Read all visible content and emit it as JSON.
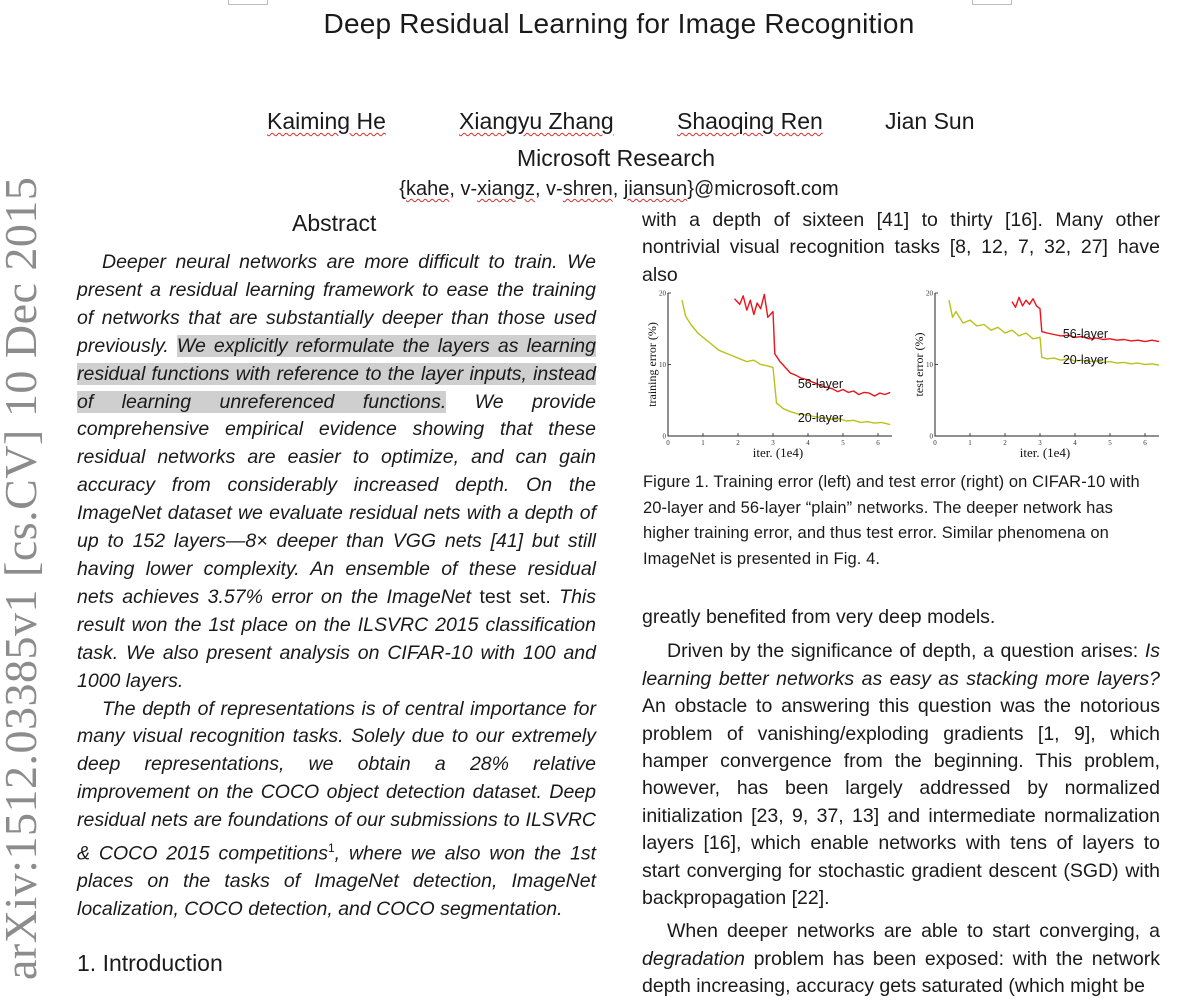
{
  "paper": {
    "title": "Deep Residual Learning for Image Recognition",
    "authors": [
      {
        "name": "Kaiming He"
      },
      {
        "name": "Xiangyu Zhang"
      },
      {
        "name": "Shaoqing Ren"
      },
      {
        "name": "Jian Sun"
      }
    ],
    "affiliation": "Microsoft Research",
    "emails": {
      "prefix": "{",
      "kahe": "kahe",
      "sep1": ", v-",
      "xiangz": "xiangz",
      "sep2": ", v-",
      "shren": "shren",
      "sep3": ", ",
      "jiansun": "jiansun",
      "suffix": "}@microsoft.com"
    },
    "arxiv_stamp": "arXiv:1512.03385v1  [cs.CV]  10 Dec 2015"
  },
  "abstract": {
    "heading": "Abstract",
    "p1_a": "Deeper neural networks are more difficult to train. We present a residual learning framework to ease the training of networks that are substantially deeper than those used previously. ",
    "p1_highlight": "We explicitly reformulate the layers as learning residual functions with reference to the layer inputs, instead of learning unreferenced functions.",
    "p1_b": " We provide comprehensive empirical evidence showing that these residual networks are easier to optimize, and can gain accuracy from considerably increased depth. On the ImageNet dataset we evaluate residual nets with a depth of up to 152 layers—8× deeper than VGG nets [41] but still having lower complexity. An ensemble of these residual nets achieves 3.57% error on the ImageNet ",
    "p1_upright": "test set.",
    "p1_c": " This result won the 1st place on the ILSVRC 2015 classification task. We also present analysis on CIFAR-10 with 100 and 1000 layers.",
    "p2_a": "The depth of representations is of central importance for many visual recognition tasks. Solely due to our extremely deep representations, we obtain a 28% relative improvement on the COCO object detection dataset. Deep residual nets are foundations of our submissions to ILSVRC & COCO 2015 competitions",
    "p2_sup": "1",
    "p2_b": ", where we also won the 1st places on the tasks of ImageNet detection, ImageNet localization, COCO detection, and COCO segmentation."
  },
  "intro_heading": "1. Introduction",
  "right_column": {
    "top_text": "with a depth of sixteen [41] to thirty [16]. Many other nontrivial visual recognition tasks [8, 12, 7, 32, 27] have also",
    "caption": "Figure 1. Training error (left) and test error (right) on CIFAR-10 with 20-layer and 56-layer “plain” networks. The deeper network has higher training error, and thus test error. Similar phenomena on ImageNet is presented in Fig. 4.",
    "after_figure": "greatly benefited from very deep models.",
    "para2_a": "Driven by the significance of depth, a question arises: ",
    "para2_italic": "Is learning better networks as easy as stacking more layers?",
    "para2_b": " An obstacle to answering this question was the notorious problem of vanishing/exploding gradients [1, 9], which hamper convergence from the beginning. This problem, however, has been largely addressed by normalized initialization [23, 9, 37, 13] and intermediate normalization layers [16], which enable networks with tens of layers to start converging for stochastic gradient descent (SGD) with backpropagation [22].",
    "para3_a": "When deeper networks are able to start converging, a ",
    "para3_italic": "degradation",
    "para3_b": " problem has been exposed: with the network depth increasing, accuracy gets saturated (which might be"
  },
  "chart_data": [
    {
      "type": "line",
      "ylabel": "training error (%)",
      "xlabel": "iter. (1e4)",
      "xticks": [
        "0",
        "1",
        "2",
        "3",
        "4",
        "5",
        "6"
      ],
      "yticks": [
        "0",
        "10",
        "20"
      ],
      "xlim": [
        0,
        6.4
      ],
      "ylim": [
        0,
        20
      ],
      "colors": {
        "56-layer": "#e8141c",
        "20-layer": "#b9c21a"
      },
      "series": [
        {
          "name": "56-layer",
          "points": [
            [
              1.9,
              19.2
            ],
            [
              2.05,
              18.4
            ],
            [
              2.15,
              19.6
            ],
            [
              2.25,
              17.6
            ],
            [
              2.35,
              19.0
            ],
            [
              2.45,
              17.0
            ],
            [
              2.55,
              18.6
            ],
            [
              2.65,
              17.8
            ],
            [
              2.75,
              19.8
            ],
            [
              2.85,
              16.6
            ],
            [
              3.0,
              17.4
            ],
            [
              3.05,
              11.5
            ],
            [
              3.2,
              10.4
            ],
            [
              3.35,
              9.6
            ],
            [
              3.5,
              8.8
            ],
            [
              3.65,
              8.5
            ],
            [
              3.8,
              8.1
            ],
            [
              3.95,
              7.9
            ],
            [
              4.1,
              7.6
            ],
            [
              4.25,
              7.3
            ],
            [
              4.4,
              7.0
            ],
            [
              4.55,
              6.8
            ],
            [
              4.7,
              6.6
            ],
            [
              4.85,
              6.2
            ],
            [
              5.0,
              6.5
            ],
            [
              5.15,
              6.1
            ],
            [
              5.3,
              6.3
            ],
            [
              5.45,
              5.8
            ],
            [
              5.6,
              6.1
            ],
            [
              5.75,
              6.0
            ],
            [
              5.9,
              5.6
            ],
            [
              6.05,
              6.0
            ],
            [
              6.2,
              5.8
            ],
            [
              6.35,
              6.1
            ]
          ]
        },
        {
          "name": "20-layer",
          "points": [
            [
              0.4,
              19.0
            ],
            [
              0.5,
              16.8
            ],
            [
              0.65,
              15.6
            ],
            [
              0.85,
              14.4
            ],
            [
              1.05,
              13.6
            ],
            [
              1.25,
              12.8
            ],
            [
              1.45,
              12.0
            ],
            [
              1.65,
              11.6
            ],
            [
              1.85,
              11.2
            ],
            [
              2.05,
              10.8
            ],
            [
              2.25,
              10.4
            ],
            [
              2.45,
              10.6
            ],
            [
              2.65,
              10.0
            ],
            [
              2.85,
              9.8
            ],
            [
              3.0,
              9.6
            ],
            [
              3.1,
              4.6
            ],
            [
              3.3,
              3.8
            ],
            [
              3.5,
              3.4
            ],
            [
              3.7,
              3.1
            ],
            [
              3.9,
              3.0
            ],
            [
              4.1,
              2.8
            ],
            [
              4.3,
              2.6
            ],
            [
              4.5,
              2.5
            ],
            [
              4.7,
              2.3
            ],
            [
              4.9,
              2.4
            ],
            [
              5.1,
              2.1
            ],
            [
              5.3,
              2.2
            ],
            [
              5.5,
              1.9
            ],
            [
              5.7,
              2.0
            ],
            [
              5.9,
              1.8
            ],
            [
              6.1,
              1.9
            ],
            [
              6.35,
              1.6
            ]
          ]
        }
      ]
    },
    {
      "type": "line",
      "ylabel": "test error (%)",
      "xlabel": "iter. (1e4)",
      "xticks": [
        "0",
        "1",
        "2",
        "3",
        "4",
        "5",
        "6"
      ],
      "yticks": [
        "0",
        "10",
        "20"
      ],
      "xlim": [
        0,
        6.4
      ],
      "ylim": [
        0,
        20
      ],
      "colors": {
        "56-layer": "#e8141c",
        "20-layer": "#b9c21a"
      },
      "series": [
        {
          "name": "56-layer",
          "points": [
            [
              2.2,
              18.8
            ],
            [
              2.3,
              18.0
            ],
            [
              2.4,
              19.4
            ],
            [
              2.5,
              18.2
            ],
            [
              2.6,
              19.0
            ],
            [
              2.7,
              18.4
            ],
            [
              2.8,
              19.2
            ],
            [
              2.9,
              18.2
            ],
            [
              3.0,
              17.8
            ],
            [
              3.05,
              14.6
            ],
            [
              3.2,
              14.4
            ],
            [
              3.4,
              14.2
            ],
            [
              3.6,
              14.0
            ],
            [
              3.8,
              14.1
            ],
            [
              4.0,
              13.8
            ],
            [
              4.2,
              13.9
            ],
            [
              4.4,
              13.6
            ],
            [
              4.6,
              13.7
            ],
            [
              4.8,
              13.5
            ],
            [
              5.0,
              13.6
            ],
            [
              5.2,
              13.4
            ],
            [
              5.4,
              13.5
            ],
            [
              5.6,
              13.3
            ],
            [
              5.8,
              13.4
            ],
            [
              6.0,
              13.2
            ],
            [
              6.2,
              13.4
            ],
            [
              6.4,
              13.2
            ]
          ]
        },
        {
          "name": "20-layer",
          "points": [
            [
              0.4,
              19.0
            ],
            [
              0.5,
              16.6
            ],
            [
              0.6,
              17.4
            ],
            [
              0.8,
              15.8
            ],
            [
              1.0,
              16.2
            ],
            [
              1.2,
              15.4
            ],
            [
              1.4,
              15.6
            ],
            [
              1.6,
              14.8
            ],
            [
              1.8,
              15.2
            ],
            [
              2.0,
              14.4
            ],
            [
              2.2,
              14.8
            ],
            [
              2.4,
              14.0
            ],
            [
              2.6,
              14.4
            ],
            [
              2.8,
              13.6
            ],
            [
              3.0,
              13.8
            ],
            [
              3.05,
              11.0
            ],
            [
              3.2,
              10.8
            ],
            [
              3.4,
              10.9
            ],
            [
              3.6,
              10.6
            ],
            [
              3.8,
              10.8
            ],
            [
              4.0,
              10.5
            ],
            [
              4.2,
              10.6
            ],
            [
              4.4,
              10.4
            ],
            [
              4.6,
              10.5
            ],
            [
              4.8,
              10.3
            ],
            [
              5.0,
              10.4
            ],
            [
              5.2,
              10.2
            ],
            [
              5.4,
              10.3
            ],
            [
              5.6,
              10.1
            ],
            [
              5.8,
              10.2
            ],
            [
              6.0,
              10.0
            ],
            [
              6.2,
              10.1
            ],
            [
              6.4,
              9.9
            ]
          ]
        }
      ]
    }
  ]
}
